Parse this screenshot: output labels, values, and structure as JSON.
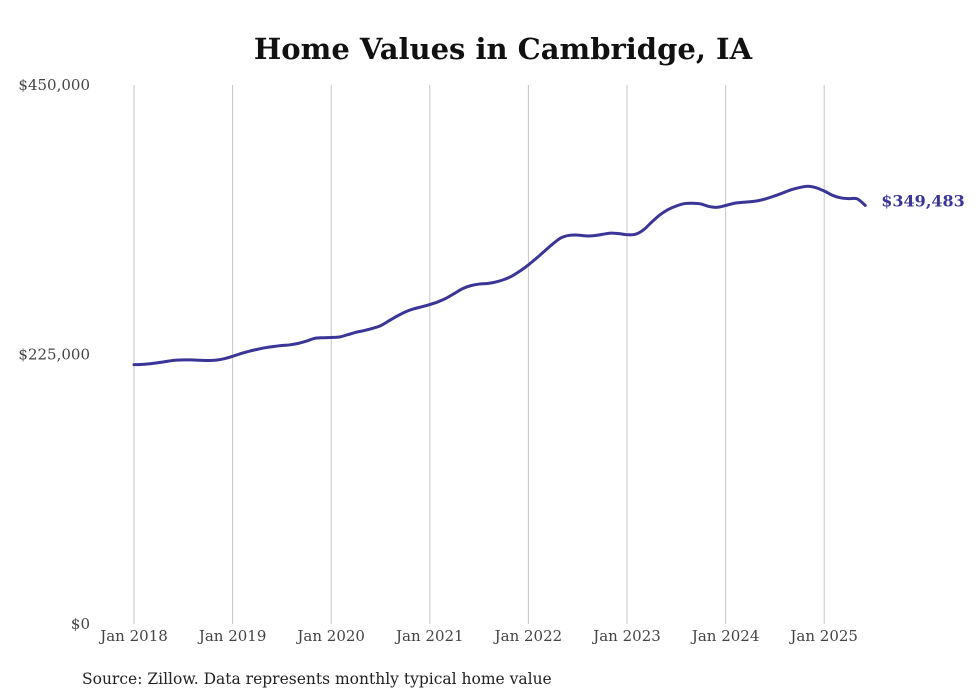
{
  "chart_data": {
    "type": "line",
    "title": "Home Values in Cambridge, IA",
    "xlabel": "",
    "ylabel": "",
    "ylim": [
      0,
      450000
    ],
    "yticks": [
      {
        "value": 0,
        "label": "$0"
      },
      {
        "value": 225000,
        "label": "$225,000"
      },
      {
        "value": 450000,
        "label": "$450,000"
      }
    ],
    "xticks": [
      {
        "value": "2018-01",
        "label": "Jan 2018"
      },
      {
        "value": "2019-01",
        "label": "Jan 2019"
      },
      {
        "value": "2020-01",
        "label": "Jan 2020"
      },
      {
        "value": "2021-01",
        "label": "Jan 2021"
      },
      {
        "value": "2022-01",
        "label": "Jan 2022"
      },
      {
        "value": "2023-01",
        "label": "Jan 2023"
      },
      {
        "value": "2024-01",
        "label": "Jan 2024"
      },
      {
        "value": "2025-01",
        "label": "Jan 2025"
      }
    ],
    "grid": "vertical",
    "line_color": "#3a3596",
    "series": [
      {
        "x": [
          "2018-01",
          "2018-02",
          "2018-03",
          "2018-04",
          "2018-05",
          "2018-06",
          "2018-07",
          "2018-08",
          "2018-09",
          "2018-10",
          "2018-11",
          "2018-12",
          "2019-01",
          "2019-02",
          "2019-03",
          "2019-04",
          "2019-05",
          "2019-06",
          "2019-07",
          "2019-08",
          "2019-09",
          "2019-10",
          "2019-11",
          "2019-12",
          "2020-01",
          "2020-02",
          "2020-03",
          "2020-04",
          "2020-05",
          "2020-06",
          "2020-07",
          "2020-08",
          "2020-09",
          "2020-10",
          "2020-11",
          "2020-12",
          "2021-01",
          "2021-02",
          "2021-03",
          "2021-04",
          "2021-05",
          "2021-06",
          "2021-07",
          "2021-08",
          "2021-09",
          "2021-10",
          "2021-11",
          "2021-12",
          "2022-01",
          "2022-02",
          "2022-03",
          "2022-04",
          "2022-05",
          "2022-06",
          "2022-07",
          "2022-08",
          "2022-09",
          "2022-10",
          "2022-11",
          "2022-12",
          "2023-01",
          "2023-02",
          "2023-03",
          "2023-04",
          "2023-05",
          "2023-06",
          "2023-07",
          "2023-08",
          "2023-09",
          "2023-10",
          "2023-11",
          "2023-12",
          "2024-01",
          "2024-02",
          "2024-03",
          "2024-04",
          "2024-05",
          "2024-06",
          "2024-07",
          "2024-08",
          "2024-09",
          "2024-10",
          "2024-11",
          "2024-12",
          "2025-01",
          "2025-02",
          "2025-03",
          "2025-04",
          "2025-05",
          "2025-06"
        ],
        "values": [
          216500,
          216800,
          217300,
          218200,
          219300,
          220200,
          220500,
          220500,
          220200,
          220000,
          220300,
          221500,
          223500,
          225800,
          227700,
          229300,
          230700,
          231700,
          232500,
          233100,
          234300,
          236200,
          238500,
          239000,
          239200,
          239600,
          241500,
          243500,
          245000,
          246800,
          249000,
          253000,
          257000,
          260500,
          263000,
          264800,
          266700,
          269000,
          272000,
          276000,
          280000,
          282500,
          283800,
          284300,
          285500,
          287500,
          290500,
          294800,
          299800,
          305500,
          311500,
          317500,
          322500,
          324500,
          324700,
          324000,
          324200,
          325300,
          326300,
          325900,
          325000,
          325300,
          329000,
          335500,
          341500,
          346000,
          349000,
          351000,
          351300,
          350700,
          348500,
          347900,
          349400,
          351200,
          352000,
          352500,
          353500,
          355200,
          357500,
          360000,
          362600,
          364400,
          365500,
          364300,
          361500,
          357900,
          355800,
          355100,
          355000,
          349483
        ]
      }
    ],
    "end_label": "$349,483"
  },
  "footer": {
    "source": "Source: Zillow. Data represents monthly typical home value"
  }
}
